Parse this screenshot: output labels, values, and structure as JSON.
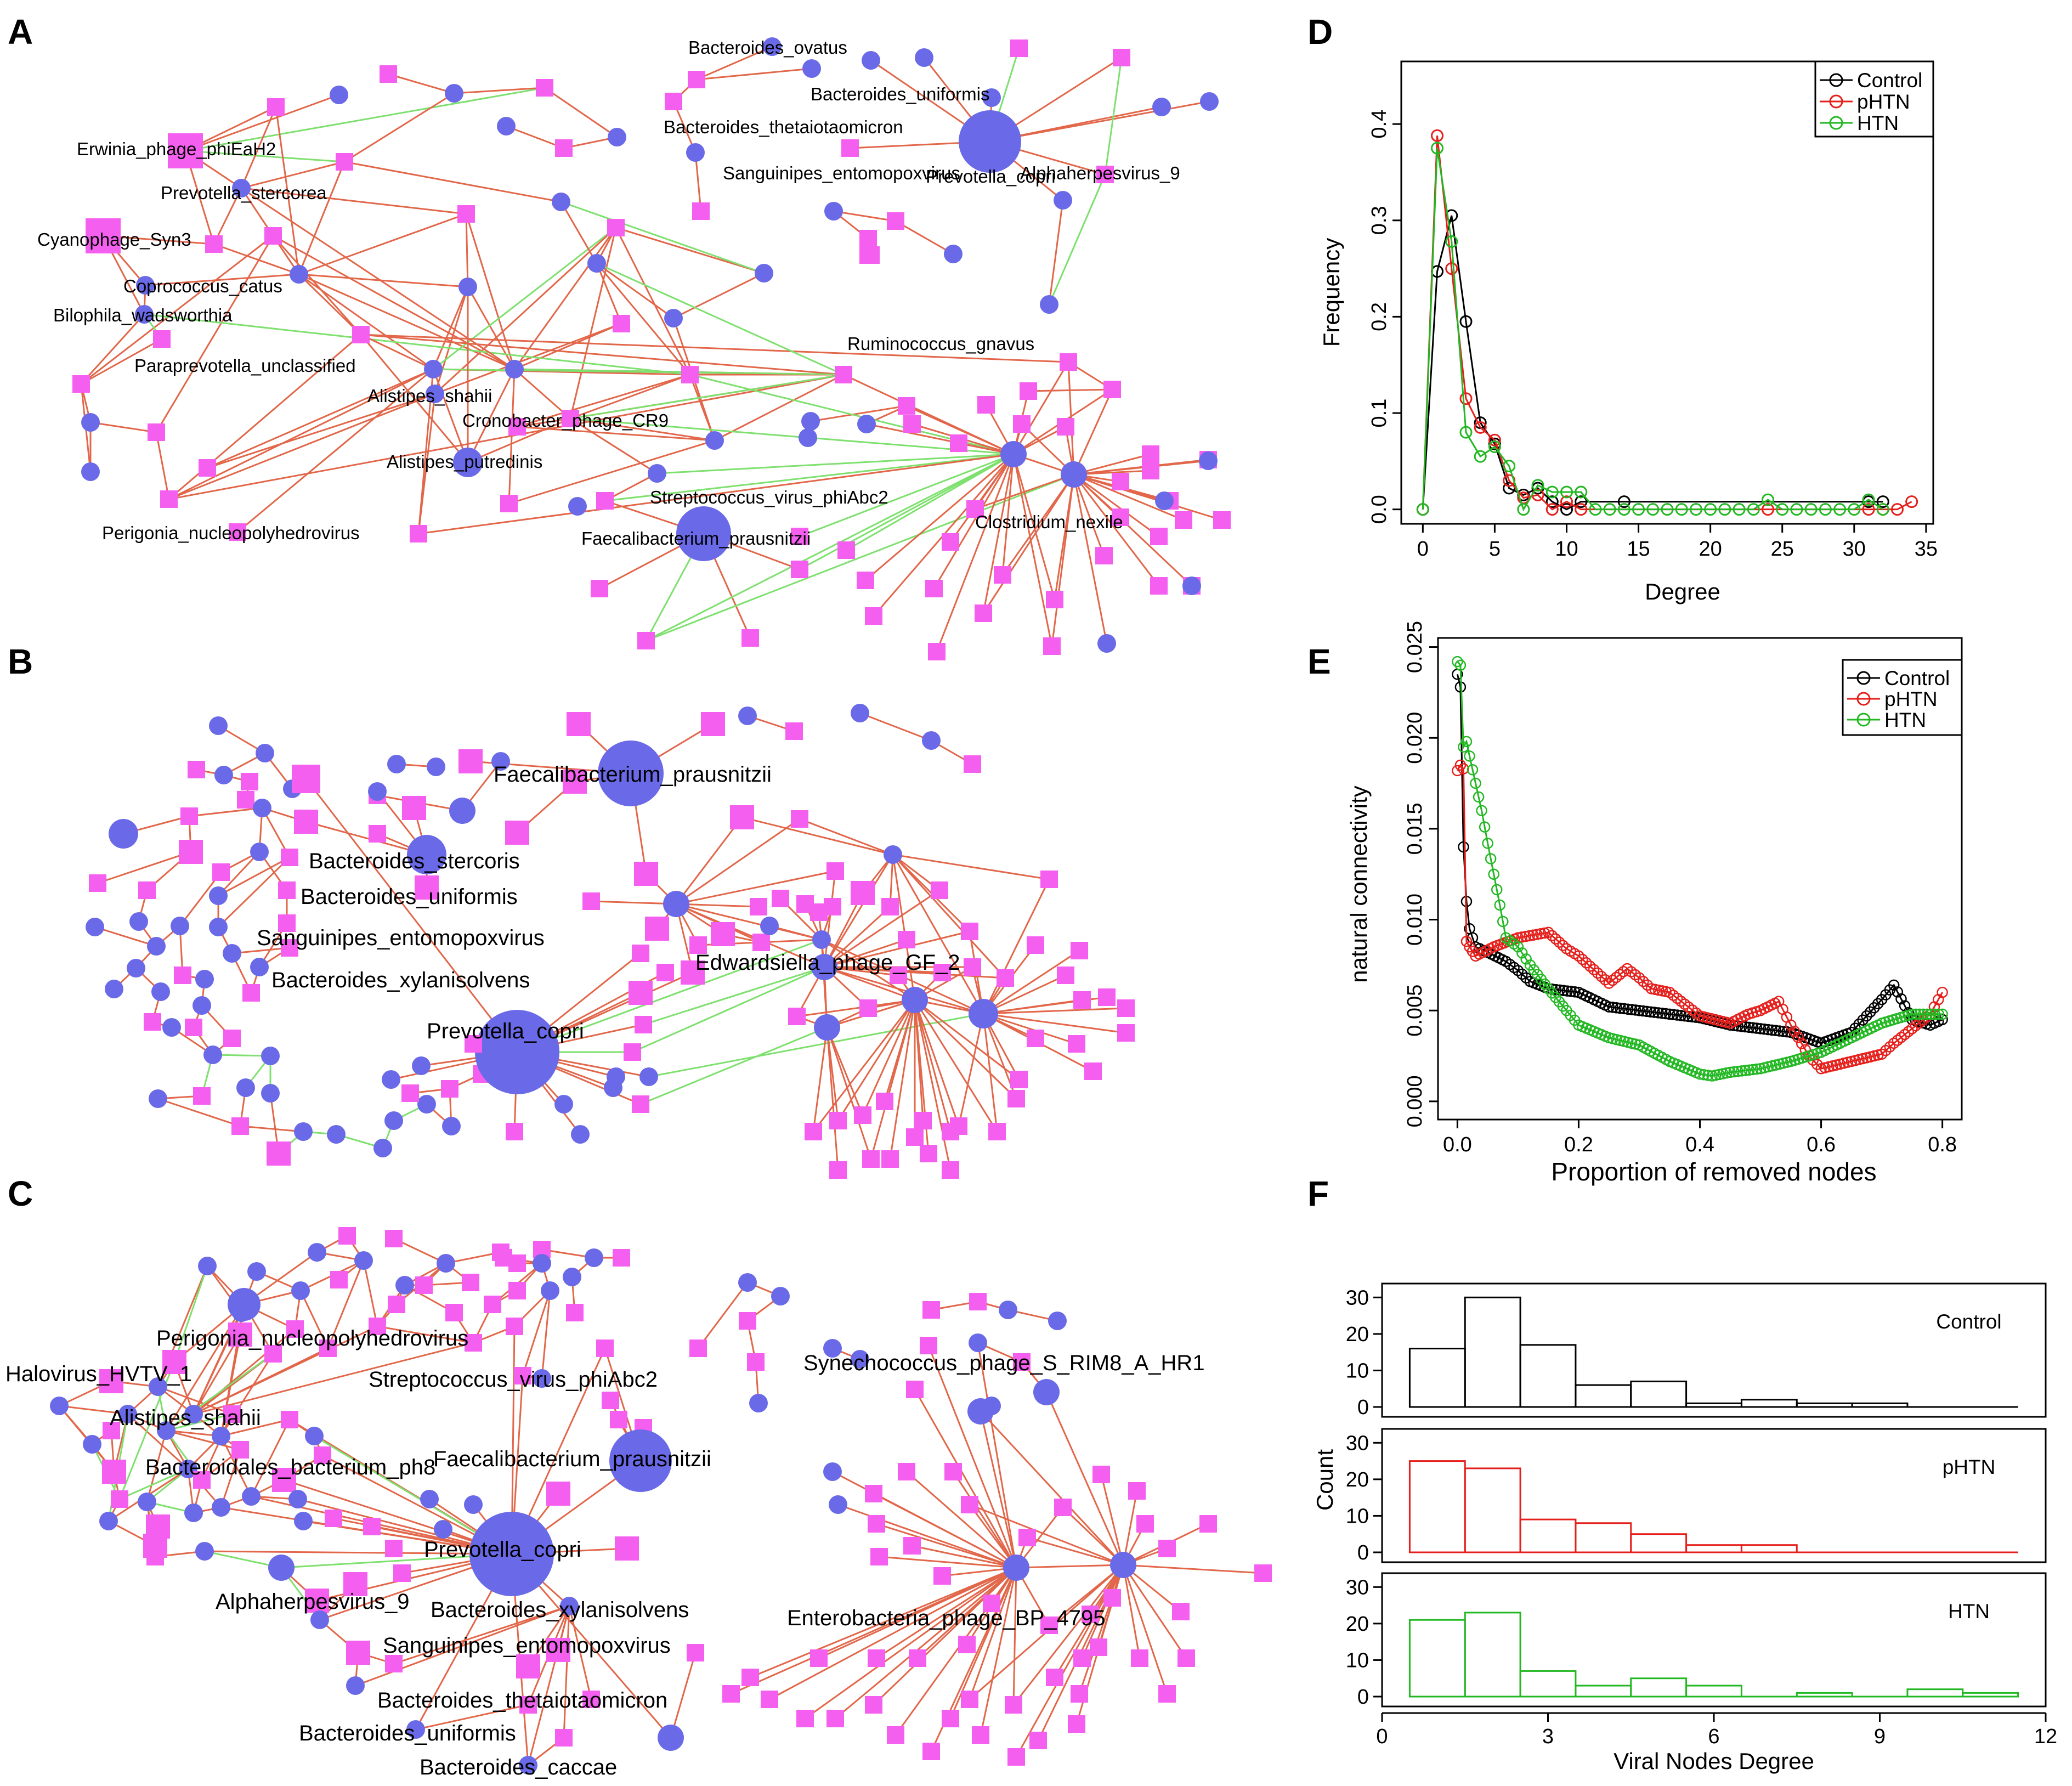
{
  "colors": {
    "bacteria_node": "#6a6ae8",
    "virus_node": "#f55ff0",
    "positive_edge": "#e2674a",
    "negative_edge": "#7ee06e",
    "control": "#000000",
    "phtn": "#e5201c",
    "htn": "#23b823"
  },
  "panels": {
    "A": {
      "letter": "A"
    },
    "B": {
      "letter": "B"
    },
    "C": {
      "letter": "C"
    },
    "D": {
      "letter": "D"
    },
    "E": {
      "letter": "E"
    },
    "F": {
      "letter": "F"
    }
  },
  "networks": {
    "A": {
      "labels": [
        "Bacteroides_ovatus",
        "Bacteroides_uniformis",
        "Bacteroides_thetaiotaomicron",
        "Prevotella_copri",
        "Sanguinipes_entomopoxvirus",
        "Alphaherpesvirus_9",
        "Erwinia_phage_phiEaH2",
        "Prevotella_stercorea",
        "Cyanophage_Syn3",
        "Coprococcus_catus",
        "Bilophila_wadsworthia",
        "Paraprevotella_unclassified",
        "Ruminococcus_gnavus",
        "Alistipes_shahii",
        "Cronobacter_phage_CR9",
        "Alistipes_putredinis",
        "Streptococcus_virus_phiAbc2",
        "Clostridium_nexile",
        "Faecalibacterium_prausnitzii",
        "Perigonia_nucleopolyhedrovirus"
      ]
    },
    "B": {
      "labels": [
        "Faecalibacterium_prausnitzii",
        "Bacteroides_stercoris",
        "Bacteroides_uniformis",
        "Sanguinipes_entomopoxvirus",
        "Bacteroides_xylanisolvens",
        "Edwardsiella_phage_GF_2",
        "Prevotella_copri"
      ]
    },
    "C": {
      "labels": [
        "Perigonia_nucleopolyhedrovirus",
        "Halovirus_HVTV_1",
        "Streptococcus_virus_phiAbc2",
        "Alistipes_shahii",
        "Faecalibacterium_prausnitzii",
        "Bacteroidales_bacterium_ph8",
        "Prevotella_copri",
        "Alphaherpesvirus_9",
        "Bacteroides_xylanisolvens",
        "Sanguinipes_entomopoxvirus",
        "Bacteroides_thetaiotaomicron",
        "Bacteroides_uniformis",
        "Bacteroides_caccae",
        "Synechococcus_phage_S_RIM8_A_HR1",
        "Enterobacteria_phage_BP_4795"
      ]
    }
  },
  "chart_data": [
    {
      "id": "D",
      "type": "line",
      "xlabel": "Degree",
      "ylabel": "Frequency",
      "xlim": [
        -1.5,
        35.5
      ],
      "ylim": [
        -0.015,
        0.465
      ],
      "xticks": [
        0,
        5,
        10,
        15,
        20,
        25,
        30,
        35
      ],
      "yticks": [
        0.0,
        0.1,
        0.2,
        0.3,
        0.4
      ],
      "ytick_labels": [
        "0.0",
        "0.1",
        "0.2",
        "0.3",
        "0.4"
      ],
      "legend": [
        "Control",
        "pHTN",
        "HTN"
      ],
      "legend_position": "top-right",
      "series": [
        {
          "name": "Control",
          "x": [
            0,
            1,
            2,
            3,
            4,
            5,
            6,
            7,
            8,
            9,
            10,
            11,
            14,
            31,
            32
          ],
          "y": [
            0,
            0.247,
            0.305,
            0.195,
            0.09,
            0.068,
            0.022,
            0.015,
            0.022,
            0.008,
            0.0,
            0.008,
            0.008,
            0.008,
            0.008
          ]
        },
        {
          "name": "pHTN",
          "x": [
            0,
            1,
            2,
            3,
            4,
            5,
            6,
            7,
            8,
            9,
            10,
            11,
            24,
            31,
            32,
            33,
            34
          ],
          "y": [
            0,
            0.388,
            0.25,
            0.115,
            0.085,
            0.072,
            0.03,
            0.012,
            0.015,
            0.0,
            0.008,
            0.0,
            0.0,
            0.0,
            0.0,
            0.0,
            0.008
          ]
        },
        {
          "name": "HTN",
          "x": [
            0,
            1,
            2,
            3,
            4,
            5,
            6,
            7,
            8,
            9,
            10,
            11,
            12,
            13,
            14,
            15,
            16,
            17,
            18,
            19,
            20,
            21,
            22,
            23,
            24,
            25,
            26,
            27,
            28,
            29,
            30,
            31,
            32
          ],
          "y": [
            0,
            0.375,
            0.278,
            0.08,
            0.055,
            0.065,
            0.045,
            0.0,
            0.025,
            0.018,
            0.018,
            0.018,
            0.0,
            0.0,
            0.0,
            0.0,
            0.0,
            0.0,
            0.0,
            0.0,
            0.0,
            0.0,
            0.0,
            0.0,
            0.01,
            0.0,
            0.0,
            0.0,
            0.0,
            0.0,
            0.0,
            0.01,
            0.0
          ]
        }
      ]
    },
    {
      "id": "E",
      "type": "line",
      "xlabel": "Proportion of removed nodes",
      "ylabel": "natural connectivity",
      "xlim": [
        -0.032,
        0.832
      ],
      "ylim": [
        -0.001,
        0.0255
      ],
      "xticks": [
        0.0,
        0.2,
        0.4,
        0.6,
        0.8
      ],
      "xtick_labels": [
        "0.0",
        "0.2",
        "0.4",
        "0.6",
        "0.8"
      ],
      "yticks": [
        0.0,
        0.005,
        0.01,
        0.015,
        0.02,
        0.025
      ],
      "ytick_labels": [
        "0.000",
        "0.005",
        "0.010",
        "0.015",
        "0.020",
        "0.025"
      ],
      "legend": [
        "Control",
        "pHTN",
        "HTN"
      ],
      "legend_position": "top-right",
      "series": [
        {
          "name": "Control",
          "x": [
            0.0,
            0.005,
            0.01,
            0.015,
            0.02,
            0.03,
            0.05,
            0.08,
            0.1,
            0.12,
            0.15,
            0.2,
            0.25,
            0.3,
            0.35,
            0.4,
            0.45,
            0.5,
            0.55,
            0.6,
            0.65,
            0.7,
            0.72,
            0.75,
            0.78,
            0.8
          ],
          "y": [
            0.0235,
            0.0228,
            0.014,
            0.011,
            0.0095,
            0.0085,
            0.0082,
            0.0077,
            0.0072,
            0.0066,
            0.0062,
            0.006,
            0.0052,
            0.005,
            0.0048,
            0.0046,
            0.0042,
            0.004,
            0.0038,
            0.0032,
            0.0038,
            0.0056,
            0.0064,
            0.0045,
            0.0042,
            0.0045
          ]
        },
        {
          "name": "pHTN",
          "x": [
            0.0,
            0.005,
            0.01,
            0.015,
            0.02,
            0.03,
            0.06,
            0.1,
            0.15,
            0.18,
            0.2,
            0.25,
            0.28,
            0.3,
            0.32,
            0.35,
            0.4,
            0.45,
            0.48,
            0.5,
            0.53,
            0.55,
            0.58,
            0.6,
            0.65,
            0.7,
            0.72,
            0.75,
            0.78,
            0.8
          ],
          "y": [
            0.0182,
            0.0185,
            0.0183,
            0.0088,
            0.0085,
            0.008,
            0.0085,
            0.009,
            0.0093,
            0.0084,
            0.008,
            0.0065,
            0.0073,
            0.0068,
            0.0062,
            0.006,
            0.0047,
            0.0043,
            0.0048,
            0.005,
            0.0055,
            0.0042,
            0.0025,
            0.0018,
            0.0022,
            0.0026,
            0.0032,
            0.004,
            0.0048,
            0.006
          ]
        },
        {
          "name": "HTN",
          "x": [
            0.0,
            0.005,
            0.01,
            0.015,
            0.02,
            0.03,
            0.04,
            0.05,
            0.06,
            0.07,
            0.08,
            0.1,
            0.12,
            0.15,
            0.18,
            0.2,
            0.25,
            0.3,
            0.35,
            0.4,
            0.42,
            0.45,
            0.5,
            0.55,
            0.6,
            0.65,
            0.7,
            0.75,
            0.8
          ],
          "y": [
            0.0242,
            0.024,
            0.0195,
            0.0198,
            0.019,
            0.0175,
            0.016,
            0.0142,
            0.0125,
            0.0108,
            0.009,
            0.0085,
            0.0075,
            0.0062,
            0.005,
            0.0042,
            0.0035,
            0.0031,
            0.0022,
            0.0015,
            0.0014,
            0.0016,
            0.0018,
            0.0022,
            0.0027,
            0.0035,
            0.0043,
            0.0048,
            0.0048
          ]
        }
      ]
    },
    {
      "id": "F",
      "type": "bar",
      "subtype": "histogram",
      "xlabel": "Viral Nodes Degree",
      "ylabel": "Count",
      "xlim": [
        0,
        12
      ],
      "xticks": [
        0,
        3,
        6,
        9,
        12
      ],
      "ylim": [
        0,
        32
      ],
      "yticks": [
        0,
        10,
        20,
        30
      ],
      "bin_edges": [
        0.5,
        1.5,
        2.5,
        3.5,
        4.5,
        5.5,
        6.5,
        7.5,
        8.5,
        9.5,
        10.5,
        11.5
      ],
      "series": [
        {
          "name": "Control",
          "values": [
            16,
            30,
            17,
            6,
            7,
            1,
            2,
            1,
            1,
            0,
            0
          ]
        },
        {
          "name": "pHTN",
          "values": [
            25,
            23,
            9,
            8,
            5,
            2,
            2,
            0,
            0,
            0,
            0
          ]
        },
        {
          "name": "HTN",
          "values": [
            21,
            23,
            7,
            3,
            5,
            3,
            0,
            1,
            0,
            2,
            1
          ]
        }
      ]
    }
  ]
}
